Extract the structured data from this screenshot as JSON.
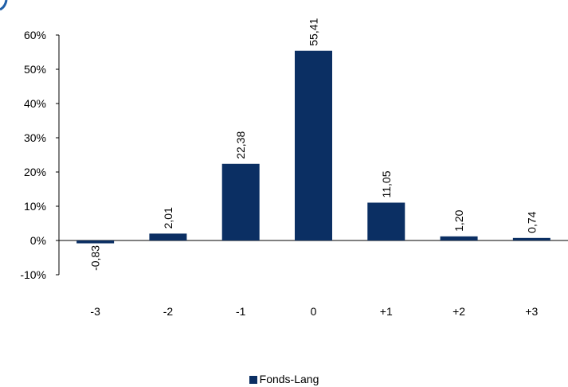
{
  "chart_data": {
    "type": "bar",
    "categories": [
      "-3",
      "-2",
      "-1",
      "0",
      "+1",
      "+2",
      "+3"
    ],
    "series": [
      {
        "name": "Fonds-Lang",
        "values": [
          -0.83,
          2.01,
          22.38,
          55.41,
          11.05,
          1.2,
          0.74
        ],
        "labels": [
          "-0,83",
          "2,01",
          "22,38",
          "55,41",
          "11,05",
          "1,20",
          "0,74"
        ]
      }
    ],
    "yticks": [
      "60%",
      "50%",
      "40%",
      "30%",
      "20%",
      "10%",
      "0%",
      "-10%"
    ],
    "ylim": [
      -10,
      60
    ],
    "grid": false,
    "legend_position": "bottom",
    "bar_color": "#0b2f63"
  }
}
